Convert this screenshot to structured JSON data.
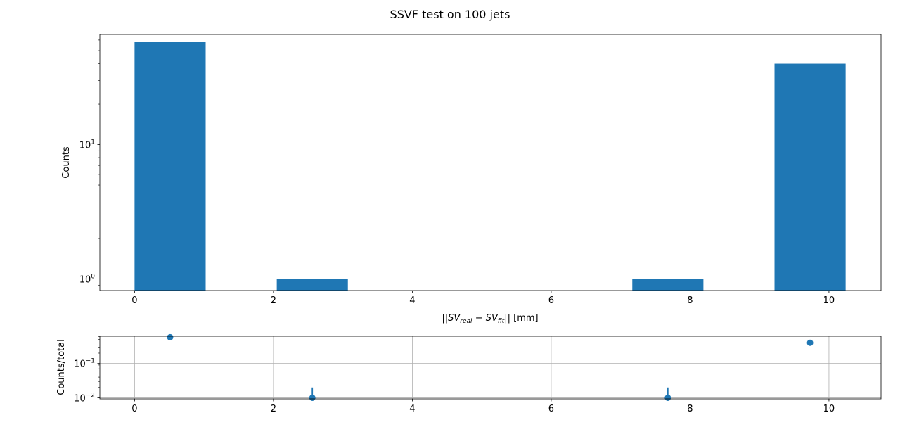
{
  "chart_data": [
    {
      "type": "bar",
      "title": "SSVF test on 100 jets",
      "xlabel": "||SV_real − SV_fit|| [mm]",
      "xlabel_parts": {
        "prefix": "||",
        "sv": "SV",
        "sub_real": "real",
        "minus": " − ",
        "sub_fit": "fit",
        "suffix": "|| [mm]"
      },
      "ylabel": "Counts",
      "yscale": "log",
      "xlim": [
        -0.5,
        10.75
      ],
      "ylim": [
        0.82,
        66
      ],
      "xticks": [
        0,
        2,
        4,
        6,
        8,
        10
      ],
      "xtick_labels": [
        "0",
        "2",
        "4",
        "6",
        "8",
        "10"
      ],
      "yticks": [
        1,
        10
      ],
      "ytick_base": "10",
      "ytick_exponents": [
        "0",
        "1"
      ],
      "grid": false,
      "color": "#1f77b4",
      "bins": [
        {
          "x0": 0.0,
          "x1": 1.024,
          "count": 58
        },
        {
          "x0": 2.048,
          "x1": 3.072,
          "count": 1
        },
        {
          "x0": 7.168,
          "x1": 8.192,
          "count": 1
        },
        {
          "x0": 9.216,
          "x1": 10.24,
          "count": 40
        }
      ]
    },
    {
      "type": "scatter",
      "ylabel": "Counts/total",
      "yscale": "log",
      "xlim": [
        -0.5,
        10.75
      ],
      "ylim": [
        0.0093,
        0.62
      ],
      "xticks": [
        0,
        2,
        4,
        6,
        8,
        10
      ],
      "xtick_labels": [
        "0",
        "2",
        "4",
        "6",
        "8",
        "10"
      ],
      "yticks": [
        0.01,
        0.1
      ],
      "ytick_base": "10",
      "ytick_exponents": [
        "−2",
        "−1"
      ],
      "grid": true,
      "color": "#1f77b4",
      "points": [
        {
          "x": 0.512,
          "y": 0.58,
          "yerr": 0.076
        },
        {
          "x": 2.56,
          "y": 0.01,
          "yerr": 0.01
        },
        {
          "x": 7.68,
          "y": 0.01,
          "yerr": 0.01
        },
        {
          "x": 9.728,
          "y": 0.4,
          "yerr": 0.063
        }
      ]
    }
  ]
}
